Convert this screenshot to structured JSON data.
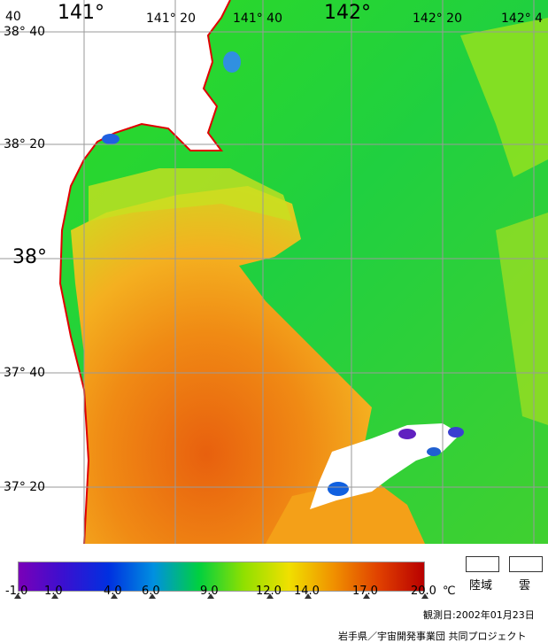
{
  "map": {
    "longitude_labels": [
      "141°",
      "141° 20",
      "141° 40",
      "142°",
      "142° 20",
      "142° 4"
    ],
    "latitude_labels": [
      "38° 40",
      "38° 20",
      "38°",
      "37° 40",
      "37° 20"
    ],
    "corner_label": "40",
    "colors": {
      "land": "#ffffff",
      "coastline": "#e00000",
      "grid": "#9a9a9a",
      "cool_water": "#22d42a",
      "warm_water": "#f08a10",
      "hot_water": "#e06010"
    }
  },
  "legend": {
    "tick_labels": [
      "-1.0",
      "1.0",
      "4.0",
      "6.0",
      "9.0",
      "12.0",
      "14.0",
      "17.0",
      "20.0"
    ],
    "unit": "℃",
    "land_label": "陸域",
    "cloud_label": "雲",
    "gradient_colors": [
      "#7a00b8",
      "#3a10d0",
      "#0030e0",
      "#0090e0",
      "#00d040",
      "#90e000",
      "#f0e000",
      "#f09000",
      "#e04000",
      "#b80000"
    ]
  },
  "footer": {
    "observation_date": "観測日:2002年01月23日",
    "credit": "岩手県／宇宙開発事業団 共同プロジェクト"
  }
}
